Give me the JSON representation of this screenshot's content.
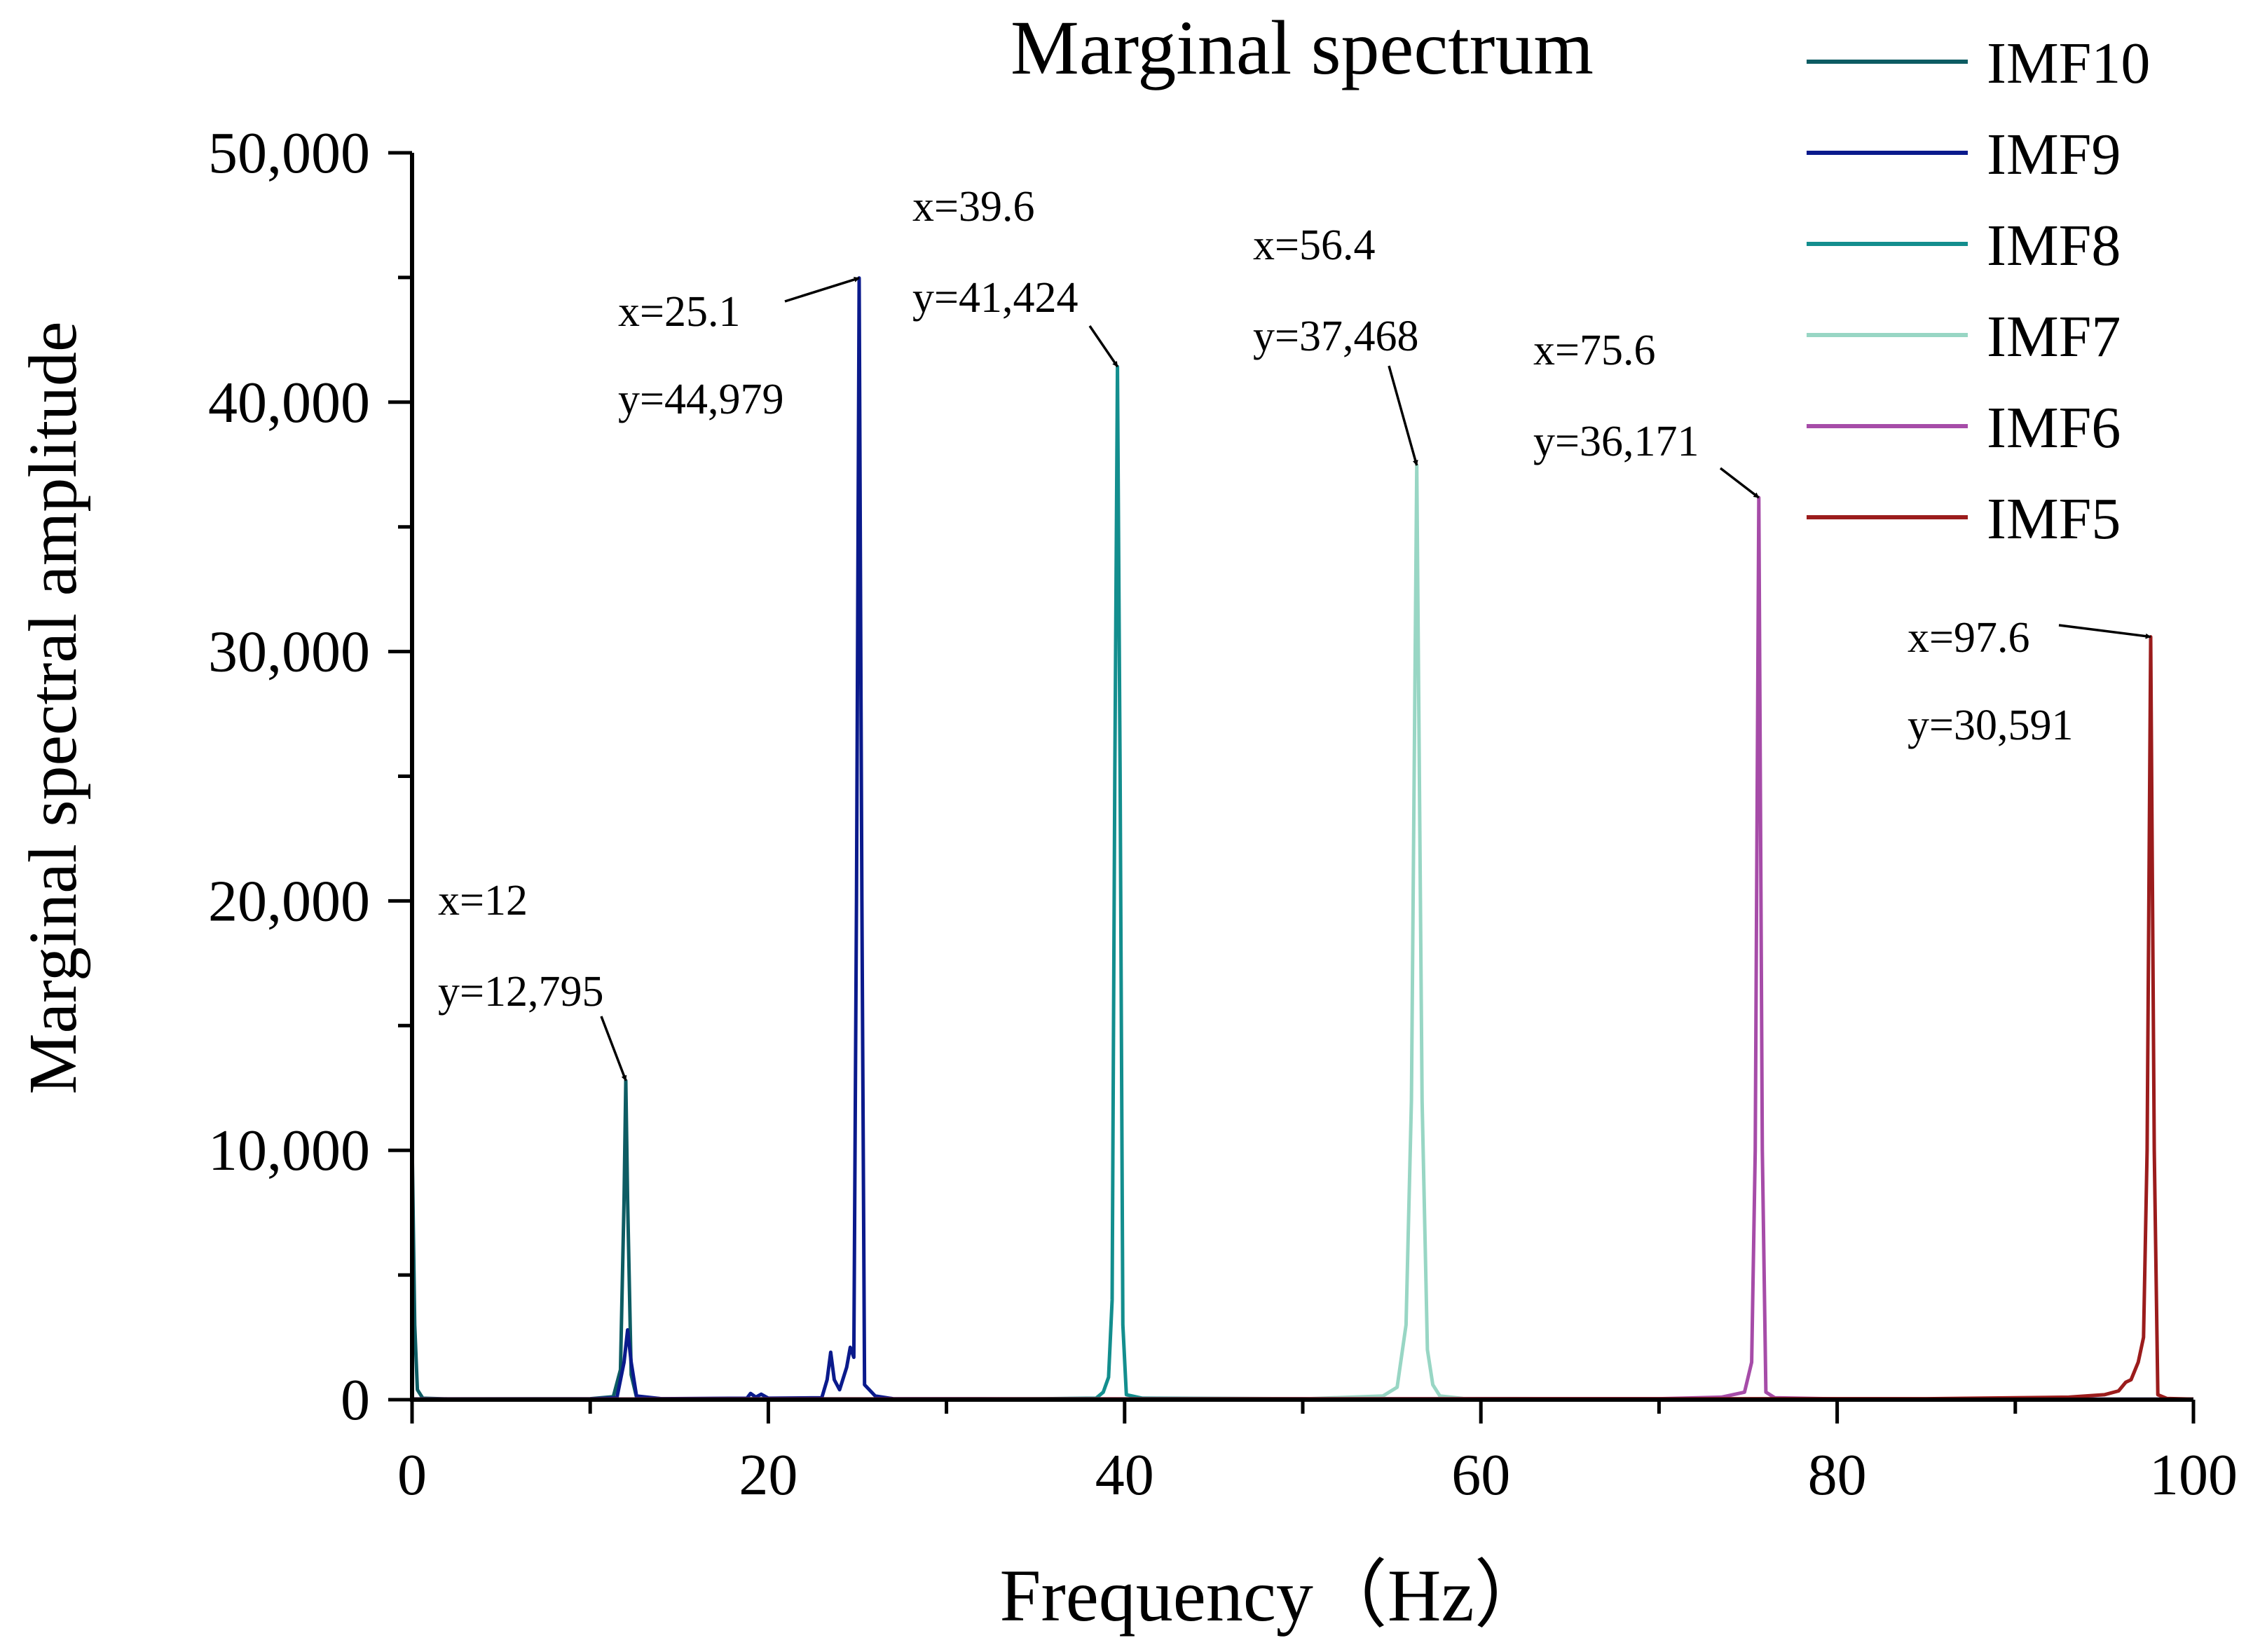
{
  "chart_data": {
    "type": "line",
    "title": "Marginal spectrum",
    "xlabel": "Frequency（Hz）",
    "ylabel": "Marginal spectral amplitude",
    "xlim": [
      0,
      100
    ],
    "ylim": [
      0,
      50000
    ],
    "x_ticks": [
      0,
      20,
      40,
      60,
      80,
      100
    ],
    "x_tick_labels": [
      "0",
      "20",
      "40",
      "60",
      "80",
      "100"
    ],
    "x_minor_step": 10,
    "y_ticks": [
      0,
      10000,
      20000,
      30000,
      40000,
      50000
    ],
    "y_tick_labels": [
      "0",
      "10,000",
      "20,000",
      "30,000",
      "40,000",
      "50,000"
    ],
    "y_minor_step": 5000,
    "grid": false,
    "legend_position": "top-right",
    "series": [
      {
        "name": "IMF10",
        "color": "#0d5c63",
        "points": [
          [
            0,
            10500
          ],
          [
            0.15,
            3000
          ],
          [
            0.3,
            400
          ],
          [
            0.6,
            60
          ],
          [
            2,
            30
          ],
          [
            10,
            40
          ],
          [
            11.3,
            120
          ],
          [
            11.7,
            1200
          ],
          [
            11.9,
            8000
          ],
          [
            12.0,
            12795
          ],
          [
            12.1,
            8000
          ],
          [
            12.3,
            1000
          ],
          [
            12.6,
            100
          ],
          [
            14,
            40
          ],
          [
            30,
            30
          ],
          [
            60,
            25
          ],
          [
            100,
            20
          ]
        ]
      },
      {
        "name": "IMF9",
        "color": "#0a1a8c",
        "points": [
          [
            0,
            30
          ],
          [
            10,
            30
          ],
          [
            11.5,
            80
          ],
          [
            11.9,
            1500
          ],
          [
            12.1,
            2800
          ],
          [
            12.3,
            1500
          ],
          [
            12.6,
            150
          ],
          [
            14,
            40
          ],
          [
            18.8,
            60
          ],
          [
            19.0,
            250
          ],
          [
            19.3,
            100
          ],
          [
            19.6,
            220
          ],
          [
            20,
            60
          ],
          [
            23.0,
            80
          ],
          [
            23.3,
            800
          ],
          [
            23.5,
            1900
          ],
          [
            23.7,
            800
          ],
          [
            24.0,
            400
          ],
          [
            24.4,
            1300
          ],
          [
            24.6,
            2100
          ],
          [
            24.8,
            1700
          ],
          [
            24.95,
            20000
          ],
          [
            25.1,
            44979
          ],
          [
            25.25,
            20000
          ],
          [
            25.4,
            600
          ],
          [
            26,
            150
          ],
          [
            27,
            40
          ],
          [
            35,
            30
          ],
          [
            100,
            20
          ]
        ]
      },
      {
        "name": "IMF8",
        "color": "#138e8e",
        "points": [
          [
            0,
            20
          ],
          [
            30,
            20
          ],
          [
            35.5,
            40
          ],
          [
            38.4,
            60
          ],
          [
            38.8,
            300
          ],
          [
            39.1,
            900
          ],
          [
            39.3,
            4000
          ],
          [
            39.45,
            25000
          ],
          [
            39.6,
            41424
          ],
          [
            39.75,
            25000
          ],
          [
            39.9,
            3000
          ],
          [
            40.1,
            200
          ],
          [
            41,
            60
          ],
          [
            50,
            40
          ],
          [
            100,
            20
          ]
        ]
      },
      {
        "name": "IMF7",
        "color": "#98d6c4",
        "points": [
          [
            0,
            20
          ],
          [
            50,
            30
          ],
          [
            54.5,
            150
          ],
          [
            55.3,
            500
          ],
          [
            55.8,
            3000
          ],
          [
            56.1,
            12000
          ],
          [
            56.4,
            37468
          ],
          [
            56.7,
            12000
          ],
          [
            57.0,
            2000
          ],
          [
            57.3,
            600
          ],
          [
            57.7,
            150
          ],
          [
            59,
            50
          ],
          [
            70,
            30
          ],
          [
            100,
            20
          ]
        ]
      },
      {
        "name": "IMF6",
        "color": "#a64ca8",
        "points": [
          [
            0,
            20
          ],
          [
            70,
            40
          ],
          [
            73.5,
            100
          ],
          [
            74.8,
            300
          ],
          [
            75.2,
            1500
          ],
          [
            75.4,
            10000
          ],
          [
            75.6,
            36171
          ],
          [
            75.8,
            10000
          ],
          [
            76.0,
            300
          ],
          [
            76.5,
            80
          ],
          [
            80,
            30
          ],
          [
            100,
            20
          ]
        ]
      },
      {
        "name": "IMF5",
        "color": "#9b1c1c",
        "points": [
          [
            0,
            20
          ],
          [
            85,
            40
          ],
          [
            93,
            100
          ],
          [
            95,
            200
          ],
          [
            95.8,
            350
          ],
          [
            96.2,
            700
          ],
          [
            96.5,
            800
          ],
          [
            96.9,
            1500
          ],
          [
            97.2,
            2500
          ],
          [
            97.4,
            10000
          ],
          [
            97.6,
            30591
          ],
          [
            97.8,
            10000
          ],
          [
            98.0,
            200
          ],
          [
            98.5,
            50
          ],
          [
            100,
            20
          ]
        ]
      }
    ],
    "annotations": [
      {
        "x_text": "x=12",
        "y_text": "y=12,795",
        "x": 12.0,
        "y": 12795
      },
      {
        "x_text": "x=25.1",
        "y_text": "y=44,979",
        "x": 25.1,
        "y": 44979
      },
      {
        "x_text": "x=39.6",
        "y_text": "y=41,424",
        "x": 39.6,
        "y": 41424
      },
      {
        "x_text": "x=56.4",
        "y_text": "y=37,468",
        "x": 56.4,
        "y": 37468
      },
      {
        "x_text": "x=75.6",
        "y_text": "y=36,171",
        "x": 75.6,
        "y": 36171
      },
      {
        "x_text": "x=97.6",
        "y_text": "y=30,591",
        "x": 97.6,
        "y": 30591
      }
    ]
  }
}
